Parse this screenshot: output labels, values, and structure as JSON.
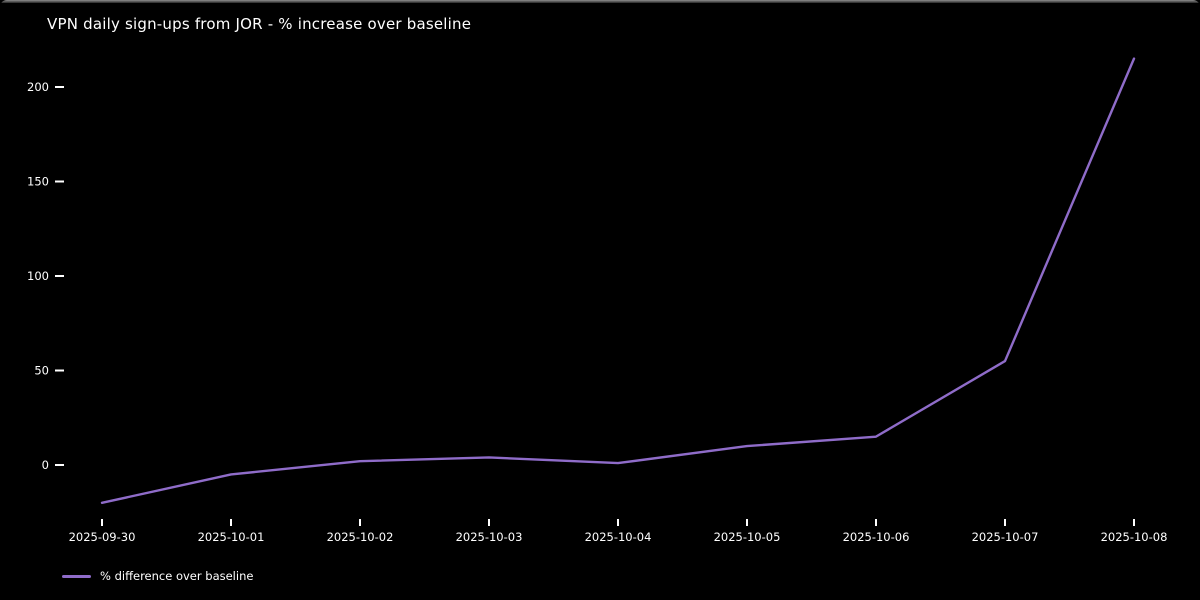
{
  "chart": {
    "colors": {
      "background": "#000000",
      "text": "#ffffff",
      "line": "#8f6cc9",
      "tick": "#ffffff",
      "window_edge": "#909090"
    }
  },
  "chart_data": {
    "type": "line",
    "title": "VPN daily sign-ups from JOR - % increase over baseline",
    "x": [
      "2025-09-30",
      "2025-10-01",
      "2025-10-02",
      "2025-10-03",
      "2025-10-04",
      "2025-10-05",
      "2025-10-06",
      "2025-10-07",
      "2025-10-08"
    ],
    "series": [
      {
        "name": "% difference over baseline",
        "values": [
          -20,
          -5,
          2,
          4,
          1,
          10,
          15,
          55,
          215
        ]
      }
    ],
    "xlabel": "",
    "ylabel": "",
    "yticks": [
      0,
      50,
      100,
      150,
      200
    ],
    "ylim": [
      -30,
      225
    ],
    "grid": false,
    "legend_position": "lower left, below x-axis",
    "plot_background": "black"
  }
}
